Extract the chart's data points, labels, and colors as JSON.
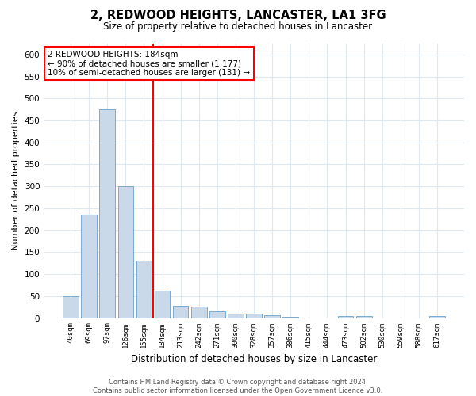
{
  "title": "2, REDWOOD HEIGHTS, LANCASTER, LA1 3FG",
  "subtitle": "Size of property relative to detached houses in Lancaster",
  "xlabel": "Distribution of detached houses by size in Lancaster",
  "ylabel": "Number of detached properties",
  "categories": [
    "40sqm",
    "69sqm",
    "97sqm",
    "126sqm",
    "155sqm",
    "184sqm",
    "213sqm",
    "242sqm",
    "271sqm",
    "300sqm",
    "328sqm",
    "357sqm",
    "386sqm",
    "415sqm",
    "444sqm",
    "473sqm",
    "502sqm",
    "530sqm",
    "559sqm",
    "588sqm",
    "617sqm"
  ],
  "values": [
    50,
    235,
    475,
    300,
    130,
    62,
    28,
    27,
    15,
    10,
    10,
    7,
    3,
    0,
    0,
    5,
    5,
    0,
    0,
    0,
    5
  ],
  "bar_color": "#c9d9ea",
  "bar_edge_color": "#7aaace",
  "red_line_index": 5,
  "annotation_title": "2 REDWOOD HEIGHTS: 184sqm",
  "annotation_line1": "← 90% of detached houses are smaller (1,177)",
  "annotation_line2": "10% of semi-detached houses are larger (131) →",
  "ylim": [
    0,
    625
  ],
  "yticks": [
    0,
    50,
    100,
    150,
    200,
    250,
    300,
    350,
    400,
    450,
    500,
    550,
    600
  ],
  "footer1": "Contains HM Land Registry data © Crown copyright and database right 2024.",
  "footer2": "Contains public sector information licensed under the Open Government Licence v3.0.",
  "bg_color": "#ffffff",
  "plot_bg_color": "#ffffff",
  "grid_color": "#e0e8f0"
}
